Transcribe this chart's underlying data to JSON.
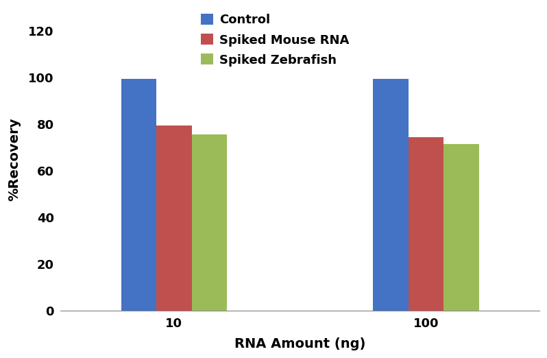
{
  "categories": [
    "10",
    "100"
  ],
  "series": [
    {
      "label": "Control",
      "values": [
        99.5,
        99.5
      ],
      "color": "#4472C4"
    },
    {
      "label": "Spiked Mouse RNA",
      "values": [
        79.5,
        74.5
      ],
      "color": "#C0504D"
    },
    {
      "label": "Spiked Zebrafish",
      "values": [
        75.5,
        71.5
      ],
      "color": "#9BBB59"
    }
  ],
  "xlabel": "RNA Amount (ng)",
  "ylabel": "%Recovery",
  "ylim": [
    0,
    130
  ],
  "yticks": [
    0,
    20,
    40,
    60,
    80,
    100,
    120
  ],
  "bar_width": 0.28,
  "group_centers": [
    1.0,
    3.0
  ],
  "xlim": [
    0.1,
    3.9
  ],
  "background_color": "#ffffff",
  "legend_fontsize": 13,
  "axis_label_fontsize": 14,
  "tick_fontsize": 13
}
